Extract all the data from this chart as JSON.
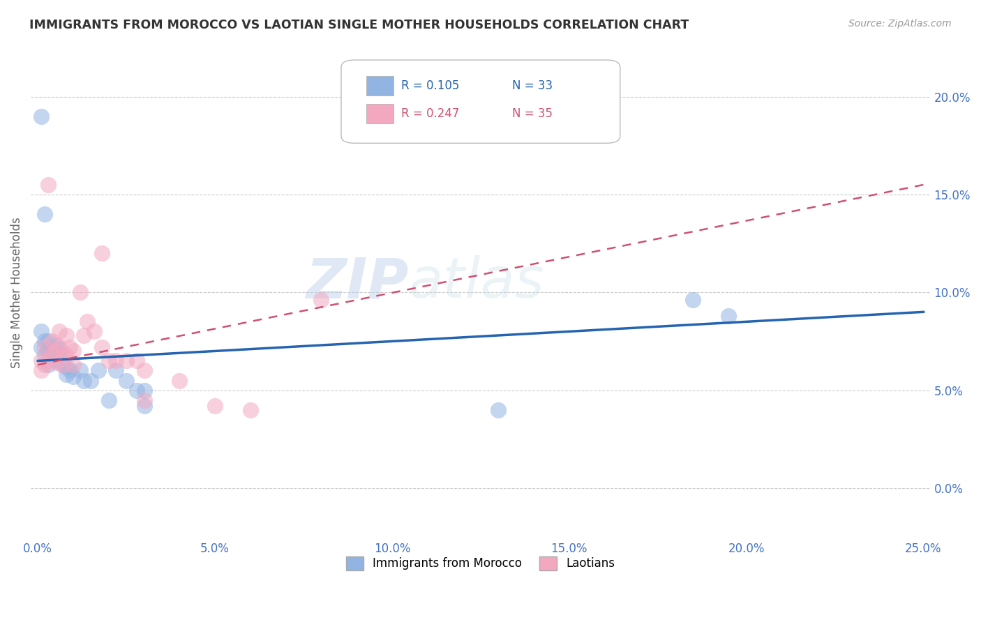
{
  "title": "IMMIGRANTS FROM MOROCCO VS LAOTIAN SINGLE MOTHER HOUSEHOLDS CORRELATION CHART",
  "source_text": "Source: ZipAtlas.com",
  "ylabel": "Single Mother Households",
  "xlabel": "",
  "xlim": [
    -0.002,
    0.252
  ],
  "ylim": [
    -0.025,
    0.225
  ],
  "yticks": [
    0.0,
    0.05,
    0.1,
    0.15,
    0.2
  ],
  "xticks": [
    0.0,
    0.05,
    0.1,
    0.15,
    0.2,
    0.25
  ],
  "series1_label": "Immigrants from Morocco",
  "series1_R": "0.105",
  "series1_N": "33",
  "series1_color": "#92B4E3",
  "series1_line_color": "#2464B0",
  "series2_label": "Laotians",
  "series2_R": "0.247",
  "series2_N": "35",
  "series2_color": "#F4A8C0",
  "series2_line_color": "#D05070",
  "watermark_zip": "ZIP",
  "watermark_atlas": "atlas",
  "background_color": "#ffffff",
  "grid_color": "#cccccc",
  "title_color": "#333333",
  "axis_label_color": "#666666",
  "tick_color": "#4472C4",
  "series1_x": [
    0.001,
    0.001,
    0.001,
    0.002,
    0.002,
    0.002,
    0.003,
    0.003,
    0.003,
    0.004,
    0.004,
    0.005,
    0.005,
    0.006,
    0.006,
    0.007,
    0.008,
    0.008,
    0.009,
    0.01,
    0.012,
    0.013,
    0.015,
    0.017,
    0.02,
    0.022,
    0.025,
    0.028,
    0.03,
    0.03,
    0.185,
    0.195,
    0.13
  ],
  "series1_y": [
    0.19,
    0.08,
    0.072,
    0.14,
    0.075,
    0.068,
    0.075,
    0.07,
    0.063,
    0.072,
    0.068,
    0.073,
    0.065,
    0.068,
    0.071,
    0.063,
    0.062,
    0.058,
    0.06,
    0.057,
    0.06,
    0.055,
    0.055,
    0.06,
    0.045,
    0.06,
    0.055,
    0.05,
    0.05,
    0.042,
    0.096,
    0.088,
    0.04
  ],
  "series2_x": [
    0.001,
    0.001,
    0.002,
    0.002,
    0.003,
    0.003,
    0.004,
    0.004,
    0.005,
    0.005,
    0.006,
    0.006,
    0.007,
    0.007,
    0.008,
    0.008,
    0.009,
    0.01,
    0.01,
    0.012,
    0.013,
    0.014,
    0.016,
    0.018,
    0.02,
    0.022,
    0.025,
    0.028,
    0.03,
    0.04,
    0.05,
    0.06,
    0.08,
    0.03,
    0.018
  ],
  "series2_y": [
    0.065,
    0.06,
    0.072,
    0.063,
    0.155,
    0.065,
    0.075,
    0.068,
    0.07,
    0.064,
    0.08,
    0.072,
    0.068,
    0.063,
    0.078,
    0.068,
    0.072,
    0.07,
    0.063,
    0.1,
    0.078,
    0.085,
    0.08,
    0.072,
    0.065,
    0.065,
    0.065,
    0.065,
    0.06,
    0.055,
    0.042,
    0.04,
    0.096,
    0.045,
    0.12
  ],
  "trend1_x0": 0.0,
  "trend1_y0": 0.065,
  "trend1_x1": 0.25,
  "trend1_y1": 0.09,
  "trend2_x0": 0.0,
  "trend2_y0": 0.063,
  "trend2_x1": 0.25,
  "trend2_y1": 0.155
}
